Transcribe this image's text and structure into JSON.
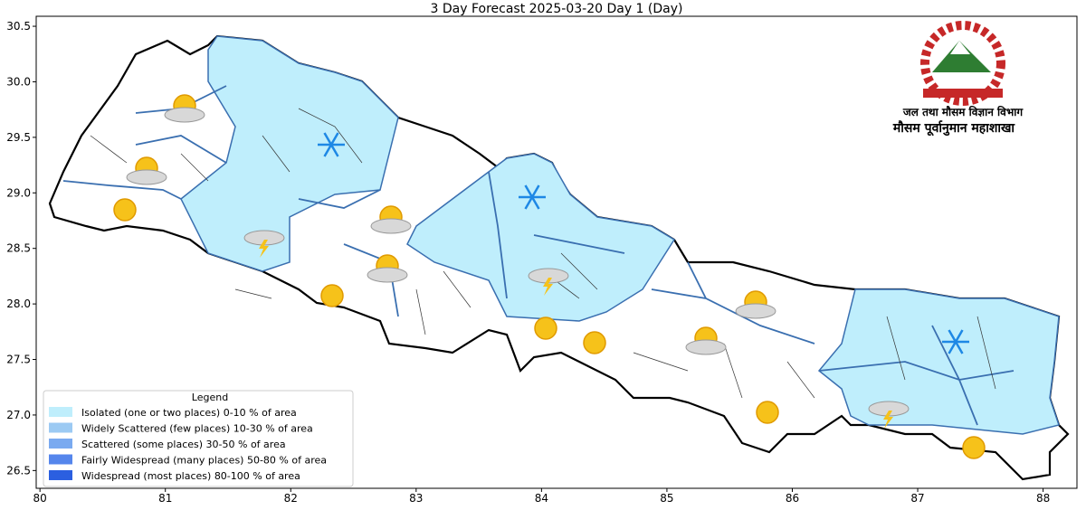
{
  "map": {
    "title": "3 Day Forecast 2025-03-20 Day 1 (Day)",
    "xlim": [
      79.97,
      88.27
    ],
    "ylim": [
      26.34,
      30.59
    ],
    "xticks": [
      80,
      81,
      82,
      83,
      84,
      85,
      86,
      87,
      88
    ],
    "yticks": [
      {
        "value": 26.5,
        "label": "26.5"
      },
      {
        "value": 27,
        "label": "27.0"
      },
      {
        "value": 27.5,
        "label": "27.5"
      },
      {
        "value": 28,
        "label": "28.0"
      },
      {
        "value": 28.5,
        "label": "28.5"
      },
      {
        "value": 29,
        "label": "29.0"
      },
      {
        "value": 29.5,
        "label": "29.5"
      },
      {
        "value": 30,
        "label": "30.0"
      },
      {
        "value": 30.5,
        "label": "30.5"
      }
    ],
    "legend": {
      "title": "Legend",
      "items": [
        {
          "label": "Isolated (one or two places)  0-10 % of area",
          "color": "#bfeefc"
        },
        {
          "label": "Widely Scattered (few places) 10-30 % of area",
          "color": "#9ccaf3"
        },
        {
          "label": "Scattered (some places) 30-50  % of area",
          "color": "#7aaaf0"
        },
        {
          "label": "Fairly Widespread (many places) 50-80 % of area",
          "color": "#5586ec"
        },
        {
          "label": "Widespread (most places) 80-100 % of area",
          "color": "#2b5fe0"
        }
      ]
    },
    "agency": [
      "जल तथा मौसम विज्ञान विभाग",
      "मौसम पूर्वानुमान महाशाखा"
    ]
  }
}
